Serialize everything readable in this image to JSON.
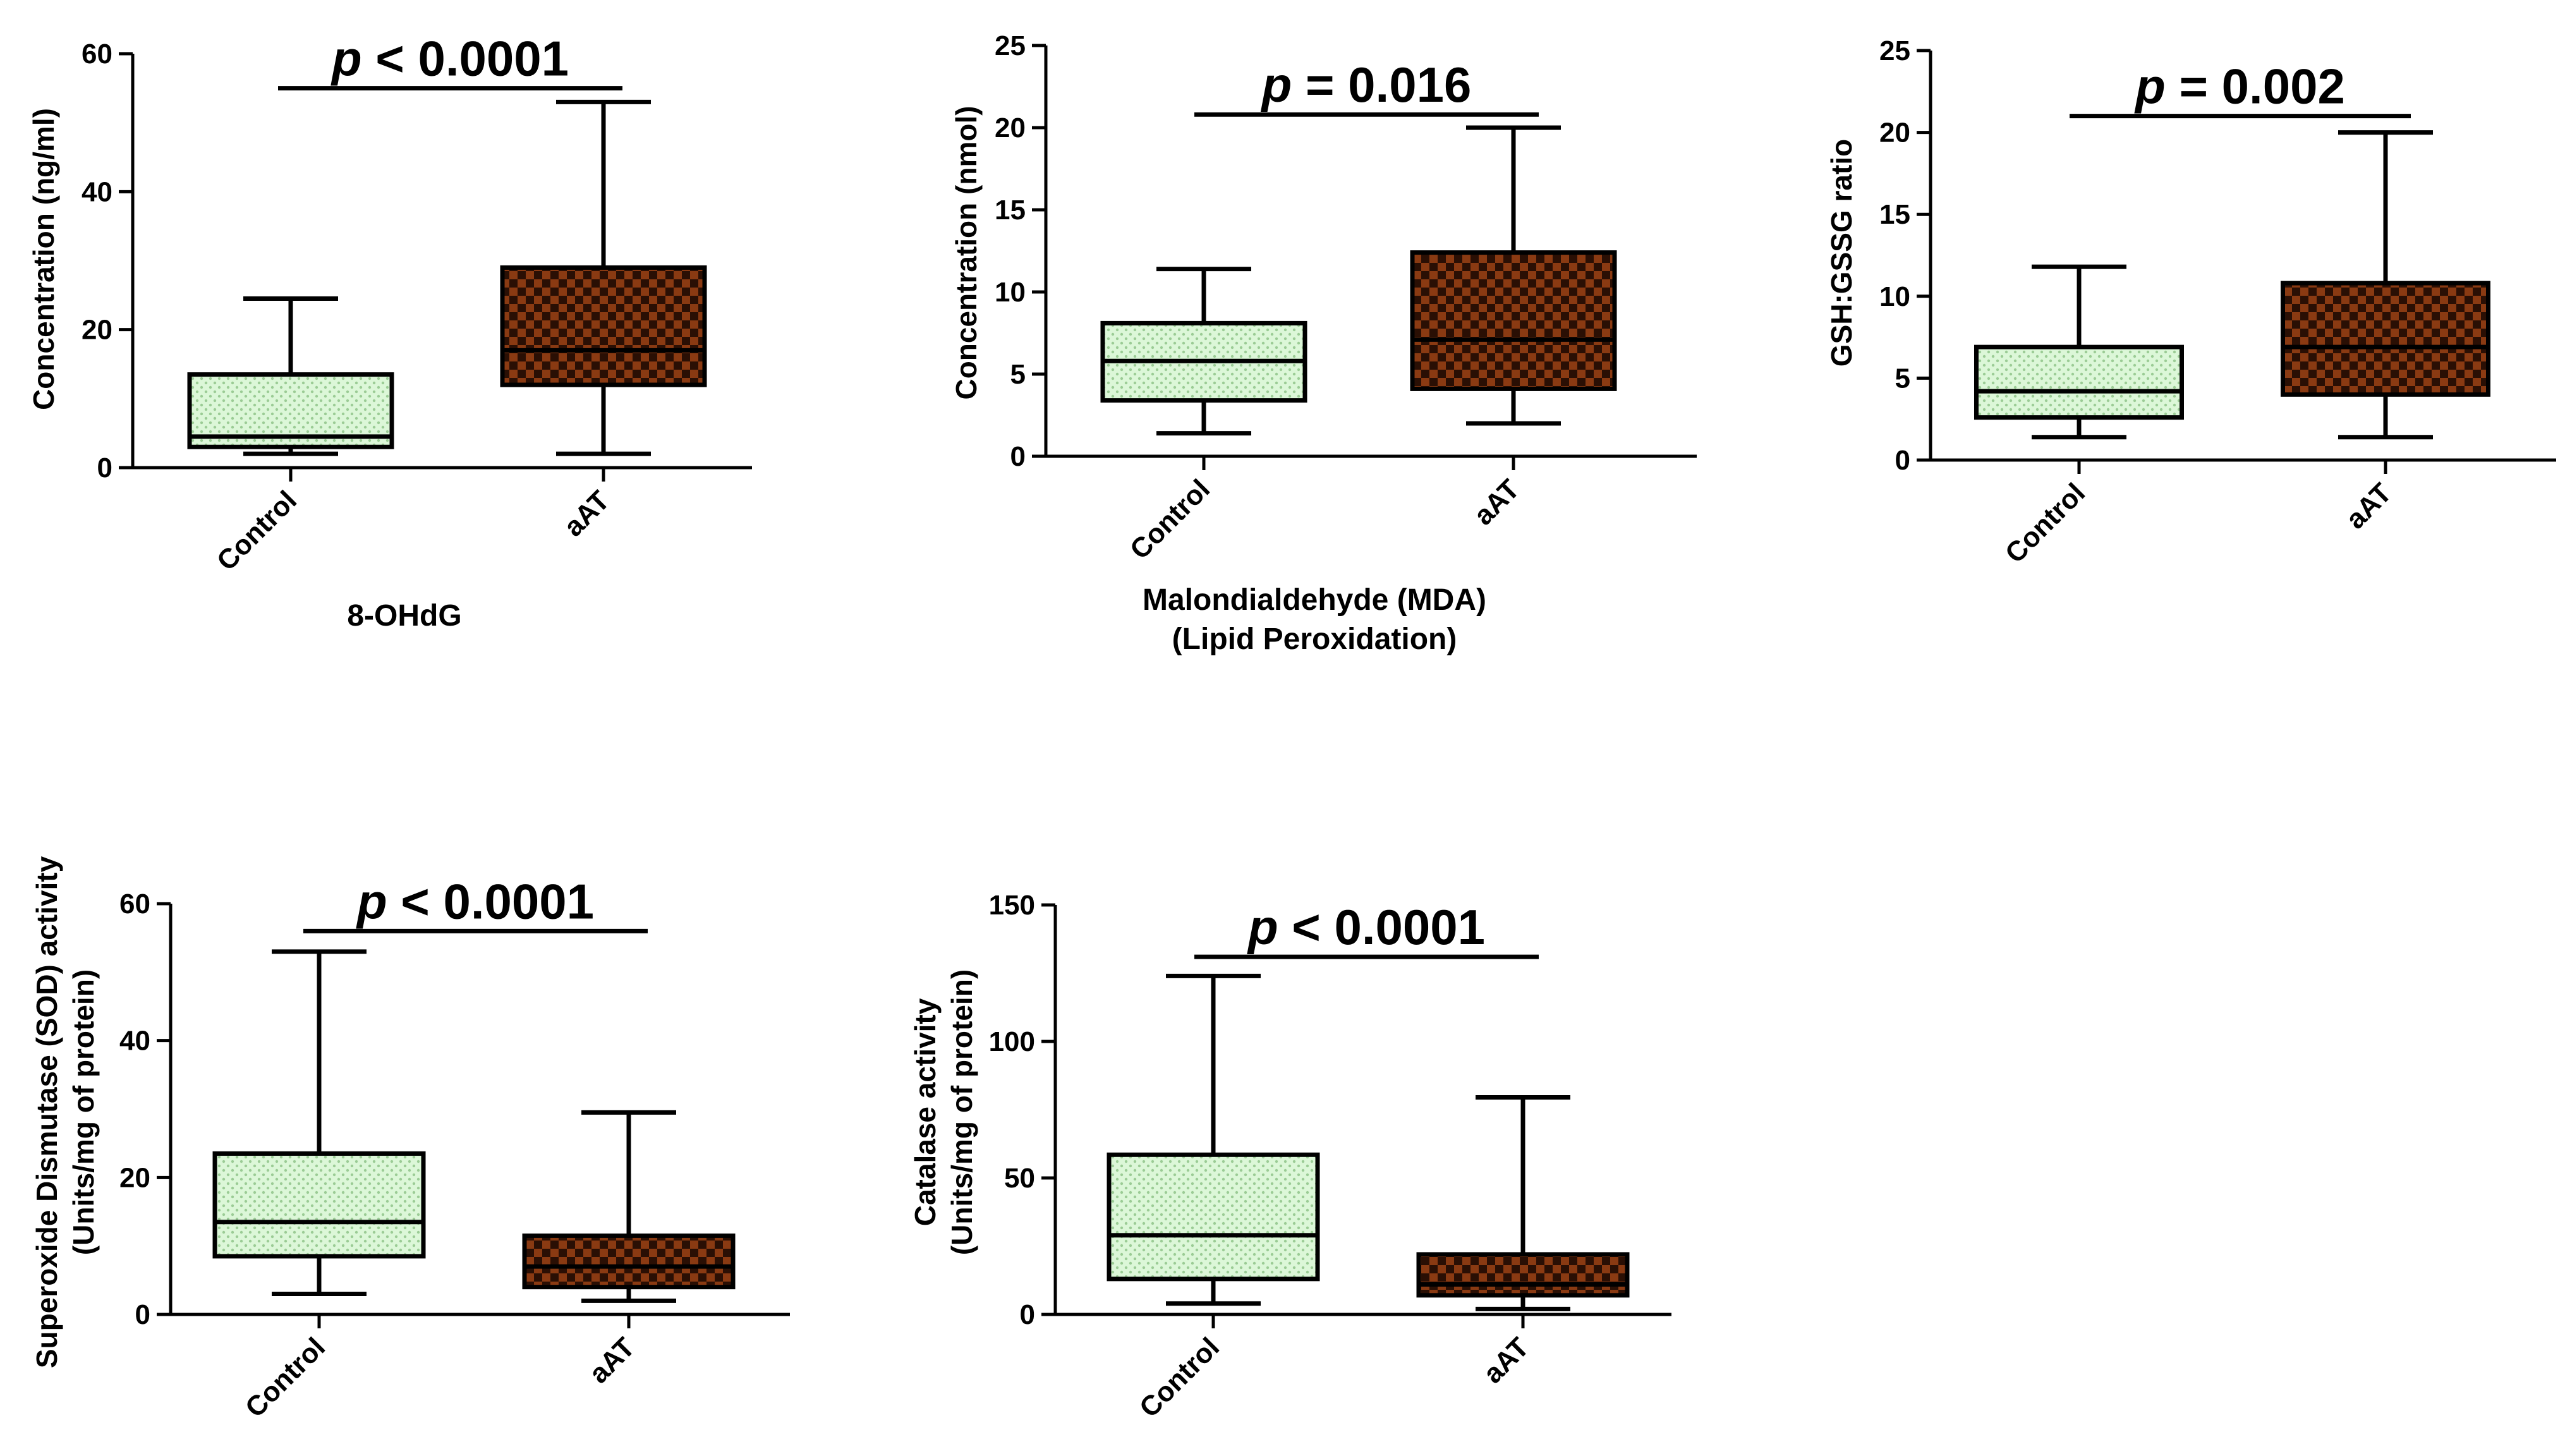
{
  "colors": {
    "control_fill": "#dcf7d8",
    "control_dot": "#9bcc95",
    "aat_fill": "#8a3a12",
    "aat_check": "#2a0f04",
    "line": "#000000"
  },
  "chart_data": [
    {
      "type": "boxplot",
      "title": "8-OHdG",
      "ylabel": "Concentration (ng/ml)",
      "ylim": [
        0,
        60
      ],
      "yticks": [
        0,
        20,
        40,
        60
      ],
      "categories": [
        "Control",
        "aAT"
      ],
      "series": [
        {
          "name": "Control",
          "pattern": "dots",
          "min": 2,
          "q1": 3,
          "median": 4.5,
          "q3": 13.5,
          "max": 24.5
        },
        {
          "name": "aAT",
          "pattern": "checker",
          "min": 2,
          "q1": 12,
          "median": 17,
          "q3": 29,
          "max": 53
        }
      ],
      "significance": {
        "p_symbol": "p",
        "p_rest": " < 0.0001",
        "bar_y": 55
      }
    },
    {
      "type": "boxplot",
      "title": "Malondialdehyde (MDA)",
      "subtitle": "(Lipid Peroxidation)",
      "ylabel": "Concentration (nmol)",
      "ylim": [
        0,
        25
      ],
      "yticks": [
        0,
        5,
        10,
        15,
        20,
        25
      ],
      "categories": [
        "Control",
        "aAT"
      ],
      "series": [
        {
          "name": "Control",
          "pattern": "dots",
          "min": 1.4,
          "q1": 3.4,
          "median": 5.8,
          "q3": 8.1,
          "max": 11.4
        },
        {
          "name": "aAT",
          "pattern": "checker",
          "min": 2,
          "q1": 4.1,
          "median": 7.1,
          "q3": 12.4,
          "max": 20
        }
      ],
      "significance": {
        "p_symbol": "p",
        "p_rest": " = 0.016",
        "bar_y": 20.8
      }
    },
    {
      "type": "boxplot",
      "title": "",
      "ylabel": "GSH:GSSG ratio",
      "ylim": [
        0,
        25
      ],
      "yticks": [
        0,
        5,
        10,
        15,
        20,
        25
      ],
      "categories": [
        "Control",
        "aAT"
      ],
      "series": [
        {
          "name": "Control",
          "pattern": "dots",
          "min": 1.4,
          "q1": 2.6,
          "median": 4.2,
          "q3": 6.9,
          "max": 11.8
        },
        {
          "name": "aAT",
          "pattern": "checker",
          "min": 1.4,
          "q1": 4,
          "median": 6.9,
          "q3": 10.8,
          "max": 20
        }
      ],
      "significance": {
        "p_symbol": "p",
        "p_rest": " = 0.002",
        "bar_y": 21
      }
    },
    {
      "type": "boxplot",
      "title": "",
      "ylabel_lines": [
        "Superoxide Dismutase (SOD) activity",
        "(Units/mg of protein)"
      ],
      "ylim": [
        0,
        60
      ],
      "yticks": [
        0,
        20,
        40,
        60
      ],
      "categories": [
        "Control",
        "aAT"
      ],
      "series": [
        {
          "name": "Control",
          "pattern": "dots",
          "min": 3,
          "q1": 8.5,
          "median": 13.5,
          "q3": 23.5,
          "max": 53
        },
        {
          "name": "aAT",
          "pattern": "checker",
          "min": 2,
          "q1": 4,
          "median": 7,
          "q3": 11.5,
          "max": 29.5
        }
      ],
      "significance": {
        "p_symbol": "p",
        "p_rest": " < 0.0001",
        "bar_y": 56
      }
    },
    {
      "type": "boxplot",
      "title": "",
      "ylabel_lines": [
        "Catalase activity",
        "(Units/mg of protein)"
      ],
      "ylim": [
        0,
        150
      ],
      "yticks": [
        0,
        50,
        100,
        150
      ],
      "categories": [
        "Control",
        "aAT"
      ],
      "series": [
        {
          "name": "Control",
          "pattern": "dots",
          "min": 4,
          "q1": 13,
          "median": 29,
          "q3": 58.5,
          "max": 124
        },
        {
          "name": "aAT",
          "pattern": "checker",
          "min": 2,
          "q1": 7,
          "median": 11,
          "q3": 22,
          "max": 79.5
        }
      ],
      "significance": {
        "p_symbol": "p",
        "p_rest": " < 0.0001",
        "bar_y": 131
      }
    }
  ]
}
